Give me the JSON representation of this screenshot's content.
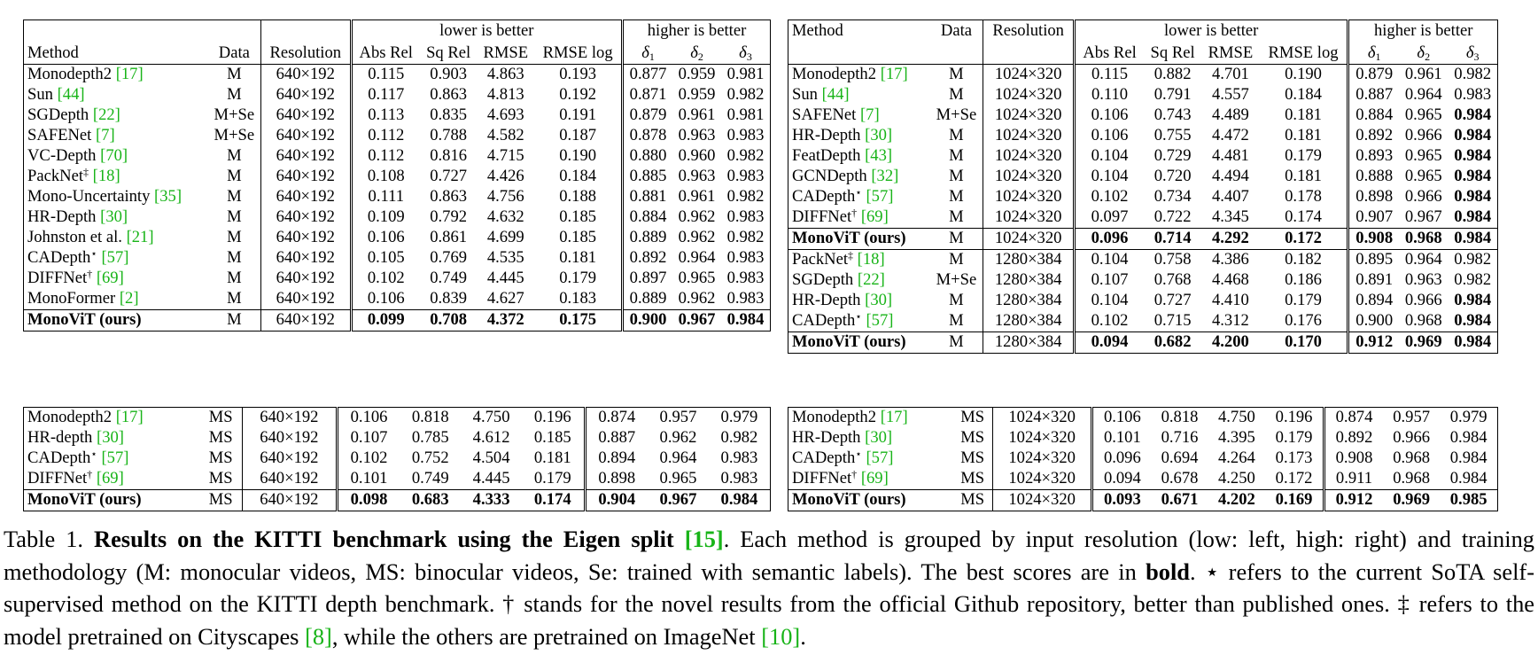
{
  "header": {
    "method": "Method",
    "data": "Data",
    "resolution": "Resolution",
    "lower": "lower is better",
    "higher": "higher is better",
    "metrics": [
      "Abs Rel",
      "Sq Rel",
      "RMSE",
      "RMSE log"
    ],
    "delta_symbol": "δ",
    "delta_subs": [
      "1",
      "2",
      "3"
    ]
  },
  "tables": {
    "low_mono": [
      {
        "method": "Monodepth2",
        "sup": "",
        "cite": "[17]",
        "data": "M",
        "res": "640×192",
        "vals": [
          "0.115",
          "0.903",
          "4.863",
          "0.193",
          "0.877",
          "0.959",
          "0.981"
        ]
      },
      {
        "method": "Sun",
        "sup": "",
        "cite": "[44]",
        "data": "M",
        "res": "640×192",
        "vals": [
          "0.117",
          "0.863",
          "4.813",
          "0.192",
          "0.871",
          "0.959",
          "0.982"
        ]
      },
      {
        "method": "SGDepth",
        "sup": "",
        "cite": "[22]",
        "data": "M+Se",
        "res": "640×192",
        "vals": [
          "0.113",
          "0.835",
          "4.693",
          "0.191",
          "0.879",
          "0.961",
          "0.981"
        ]
      },
      {
        "method": "SAFENet",
        "sup": "",
        "cite": "[7]",
        "data": "M+Se",
        "res": "640×192",
        "vals": [
          "0.112",
          "0.788",
          "4.582",
          "0.187",
          "0.878",
          "0.963",
          "0.983"
        ]
      },
      {
        "method": "VC-Depth",
        "sup": "",
        "cite": "[70]",
        "data": "M",
        "res": "640×192",
        "vals": [
          "0.112",
          "0.816",
          "4.715",
          "0.190",
          "0.880",
          "0.960",
          "0.982"
        ]
      },
      {
        "method": "PackNet",
        "sup": "‡",
        "cite": "[18]",
        "data": "M",
        "res": "640×192",
        "vals": [
          "0.108",
          "0.727",
          "4.426",
          "0.184",
          "0.885",
          "0.963",
          "0.983"
        ]
      },
      {
        "method": "Mono-Uncertainty",
        "sup": "",
        "cite": "[35]",
        "data": "M",
        "res": "640×192",
        "vals": [
          "0.111",
          "0.863",
          "4.756",
          "0.188",
          "0.881",
          "0.961",
          "0.982"
        ]
      },
      {
        "method": "HR-Depth",
        "sup": "",
        "cite": "[30]",
        "data": "M",
        "res": "640×192",
        "vals": [
          "0.109",
          "0.792",
          "4.632",
          "0.185",
          "0.884",
          "0.962",
          "0.983"
        ]
      },
      {
        "method": "Johnston et al.",
        "sup": "",
        "cite": "[21]",
        "data": "M",
        "res": "640×192",
        "vals": [
          "0.106",
          "0.861",
          "4.699",
          "0.185",
          "0.889",
          "0.962",
          "0.982"
        ]
      },
      {
        "method": "CADepth",
        "sup": "⋆",
        "cite": "[57]",
        "data": "M",
        "res": "640×192",
        "vals": [
          "0.105",
          "0.769",
          "4.535",
          "0.181",
          "0.892",
          "0.964",
          "0.983"
        ]
      },
      {
        "method": "DIFFNet",
        "sup": "†",
        "cite": "[69]",
        "data": "M",
        "res": "640×192",
        "vals": [
          "0.102",
          "0.749",
          "4.445",
          "0.179",
          "0.897",
          "0.965",
          "0.983"
        ]
      },
      {
        "method": "MonoFormer",
        "sup": "",
        "cite": "[2]",
        "data": "M",
        "res": "640×192",
        "vals": [
          "0.106",
          "0.839",
          "4.627",
          "0.183",
          "0.889",
          "0.962",
          "0.983"
        ]
      },
      {
        "method": "MonoViT (ours)",
        "sup": "",
        "cite": "",
        "data": "M",
        "res": "640×192",
        "vals": [
          "0.099",
          "0.708",
          "4.372",
          "0.175",
          "0.900",
          "0.967",
          "0.984"
        ],
        "bold": [
          true,
          true,
          true,
          true,
          true,
          true,
          true
        ],
        "bold_method": true,
        "sep": true
      }
    ],
    "high_mono": [
      {
        "method": "Monodepth2",
        "sup": "",
        "cite": "[17]",
        "data": "M",
        "res": "1024×320",
        "vals": [
          "0.115",
          "0.882",
          "4.701",
          "0.190",
          "0.879",
          "0.961",
          "0.982"
        ]
      },
      {
        "method": "Sun",
        "sup": "",
        "cite": "[44]",
        "data": "M",
        "res": "1024×320",
        "vals": [
          "0.110",
          "0.791",
          "4.557",
          "0.184",
          "0.887",
          "0.964",
          "0.983"
        ]
      },
      {
        "method": "SAFENet",
        "sup": "",
        "cite": "[7]",
        "data": "M+Se",
        "res": "1024×320",
        "vals": [
          "0.106",
          "0.743",
          "4.489",
          "0.181",
          "0.884",
          "0.965",
          "0.984"
        ],
        "bold": [
          false,
          false,
          false,
          false,
          false,
          false,
          true
        ]
      },
      {
        "method": "HR-Depth",
        "sup": "",
        "cite": "[30]",
        "data": "M",
        "res": "1024×320",
        "vals": [
          "0.106",
          "0.755",
          "4.472",
          "0.181",
          "0.892",
          "0.966",
          "0.984"
        ],
        "bold": [
          false,
          false,
          false,
          false,
          false,
          false,
          true
        ]
      },
      {
        "method": "FeatDepth",
        "sup": "",
        "cite": "[43]",
        "data": "M",
        "res": "1024×320",
        "vals": [
          "0.104",
          "0.729",
          "4.481",
          "0.179",
          "0.893",
          "0.965",
          "0.984"
        ],
        "bold": [
          false,
          false,
          false,
          false,
          false,
          false,
          true
        ]
      },
      {
        "method": "GCNDepth",
        "sup": "",
        "cite": "[32]",
        "data": "M",
        "res": "1024×320",
        "vals": [
          "0.104",
          "0.720",
          "4.494",
          "0.181",
          "0.888",
          "0.965",
          "0.984"
        ],
        "bold": [
          false,
          false,
          false,
          false,
          false,
          false,
          true
        ]
      },
      {
        "method": "CADepth",
        "sup": "⋆",
        "cite": "[57]",
        "data": "M",
        "res": "1024×320",
        "vals": [
          "0.102",
          "0.734",
          "4.407",
          "0.178",
          "0.898",
          "0.966",
          "0.984"
        ],
        "bold": [
          false,
          false,
          false,
          false,
          false,
          false,
          true
        ]
      },
      {
        "method": "DIFFNet",
        "sup": "†",
        "cite": "[69]",
        "data": "M",
        "res": "1024×320",
        "vals": [
          "0.097",
          "0.722",
          "4.345",
          "0.174",
          "0.907",
          "0.967",
          "0.984"
        ],
        "bold": [
          false,
          false,
          false,
          false,
          false,
          false,
          true
        ]
      },
      {
        "method": "MonoViT (ours)",
        "sup": "",
        "cite": "",
        "data": "M",
        "res": "1024×320",
        "vals": [
          "0.096",
          "0.714",
          "4.292",
          "0.172",
          "0.908",
          "0.968",
          "0.984"
        ],
        "bold": [
          true,
          true,
          true,
          true,
          true,
          true,
          true
        ],
        "bold_method": true,
        "sep": true
      },
      {
        "method": "PackNet",
        "sup": "‡",
        "cite": "[18]",
        "data": "M",
        "res": "1280×384",
        "vals": [
          "0.104",
          "0.758",
          "4.386",
          "0.182",
          "0.895",
          "0.964",
          "0.982"
        ],
        "sep": true
      },
      {
        "method": "SGDepth",
        "sup": "",
        "cite": "[22]",
        "data": "M+Se",
        "res": "1280×384",
        "vals": [
          "0.107",
          "0.768",
          "4.468",
          "0.186",
          "0.891",
          "0.963",
          "0.982"
        ]
      },
      {
        "method": "HR-Depth",
        "sup": "",
        "cite": "[30]",
        "data": "M",
        "res": "1280×384",
        "vals": [
          "0.104",
          "0.727",
          "4.410",
          "0.179",
          "0.894",
          "0.966",
          "0.984"
        ],
        "bold": [
          false,
          false,
          false,
          false,
          false,
          false,
          true
        ]
      },
      {
        "method": "CADepth",
        "sup": "⋆",
        "cite": "[57]",
        "data": "M",
        "res": "1280×384",
        "vals": [
          "0.102",
          "0.715",
          "4.312",
          "0.176",
          "0.900",
          "0.968",
          "0.984"
        ],
        "bold": [
          false,
          false,
          false,
          false,
          false,
          false,
          true
        ]
      },
      {
        "method": "MonoViT (ours)",
        "sup": "",
        "cite": "",
        "data": "M",
        "res": "1280×384",
        "vals": [
          "0.094",
          "0.682",
          "4.200",
          "0.170",
          "0.912",
          "0.969",
          "0.984"
        ],
        "bold": [
          true,
          true,
          true,
          true,
          true,
          true,
          true
        ],
        "bold_method": true,
        "sep": true
      }
    ],
    "low_stereo": [
      {
        "method": "Monodepth2",
        "sup": "",
        "cite": "[17]",
        "data": "MS",
        "res": "640×192",
        "vals": [
          "0.106",
          "0.818",
          "4.750",
          "0.196",
          "0.874",
          "0.957",
          "0.979"
        ]
      },
      {
        "method": "HR-depth",
        "sup": "",
        "cite": "[30]",
        "data": "MS",
        "res": "640×192",
        "vals": [
          "0.107",
          "0.785",
          "4.612",
          "0.185",
          "0.887",
          "0.962",
          "0.982"
        ]
      },
      {
        "method": "CADepth",
        "sup": "⋆",
        "cite": "[57]",
        "data": "MS",
        "res": "640×192",
        "vals": [
          "0.102",
          "0.752",
          "4.504",
          "0.181",
          "0.894",
          "0.964",
          "0.983"
        ]
      },
      {
        "method": "DIFFNet",
        "sup": "†",
        "cite": "[69]",
        "data": "MS",
        "res": "640×192",
        "vals": [
          "0.101",
          "0.749",
          "4.445",
          "0.179",
          "0.898",
          "0.965",
          "0.983"
        ]
      },
      {
        "method": "MonoViT (ours)",
        "sup": "",
        "cite": "",
        "data": "MS",
        "res": "640×192",
        "vals": [
          "0.098",
          "0.683",
          "4.333",
          "0.174",
          "0.904",
          "0.967",
          "0.984"
        ],
        "bold": [
          true,
          true,
          true,
          true,
          true,
          true,
          true
        ],
        "bold_method": true,
        "sep": true
      }
    ],
    "high_stereo": [
      {
        "method": "Monodepth2",
        "sup": "",
        "cite": "[17]",
        "data": "MS",
        "res": "1024×320",
        "vals": [
          "0.106",
          "0.818",
          "4.750",
          "0.196",
          "0.874",
          "0.957",
          "0.979"
        ]
      },
      {
        "method": "HR-Depth",
        "sup": "",
        "cite": "[30]",
        "data": "MS",
        "res": "1024×320",
        "vals": [
          "0.101",
          "0.716",
          "4.395",
          "0.179",
          "0.892",
          "0.966",
          "0.984"
        ]
      },
      {
        "method": "CADepth",
        "sup": "⋆",
        "cite": "[57]",
        "data": "MS",
        "res": "1024×320",
        "vals": [
          "0.096",
          "0.694",
          "4.264",
          "0.173",
          "0.908",
          "0.968",
          "0.984"
        ]
      },
      {
        "method": "DIFFNet",
        "sup": "†",
        "cite": "[69]",
        "data": "MS",
        "res": "1024×320",
        "vals": [
          "0.094",
          "0.678",
          "4.250",
          "0.172",
          "0.911",
          "0.968",
          "0.984"
        ]
      },
      {
        "method": "MonoViT (ours)",
        "sup": "",
        "cite": "",
        "data": "MS",
        "res": "1024×320",
        "vals": [
          "0.093",
          "0.671",
          "4.202",
          "0.169",
          "0.912",
          "0.969",
          "0.985"
        ],
        "bold": [
          true,
          true,
          true,
          true,
          true,
          true,
          true
        ],
        "bold_method": true,
        "sep": true
      }
    ]
  },
  "caption": {
    "label": "Table 1.",
    "title": "Results on the KITTI benchmark using the Eigen split",
    "title_cite": "[15]",
    "text1": ". Each method is grouped by input resolution (low: left, high: right) and training methodology (M: monocular videos, MS: binocular videos, Se: trained with semantic labels). The best scores are in ",
    "bold_word": "bold",
    "text2": ". ⋆ refers to the current SoTA self-supervised method on the KITTI depth benchmark. † stands for the novel results from the official Github repository, better than published ones. ‡ refers to the model pretrained on Cityscapes ",
    "cite_cityscapes": "[8]",
    "text3": ", while the others are pretrained on ImageNet ",
    "cite_imagenet": "[10]",
    "text4": "."
  }
}
